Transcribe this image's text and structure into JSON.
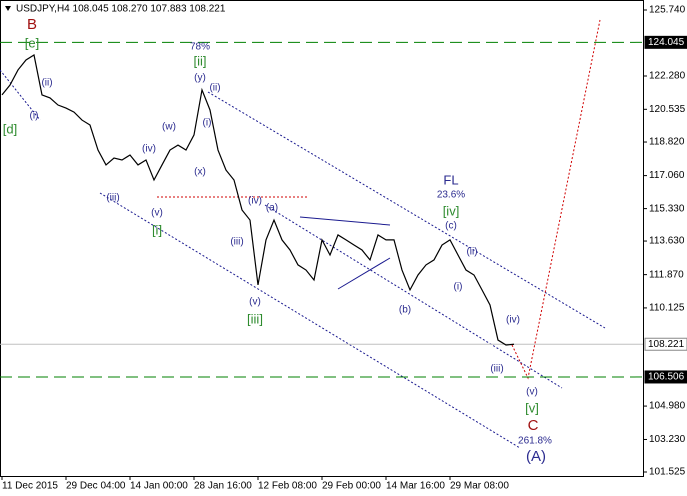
{
  "chart_data": {
    "type": "line",
    "title": "USDJPY,H4  108.045 108.270 107.883 108.221",
    "categories": [
      "11 Dec 2015",
      null,
      null,
      null,
      null,
      null,
      null,
      null,
      "29 Dec 04:00",
      null,
      null,
      null,
      null,
      null,
      null,
      null,
      "14 Jan 00:00",
      null,
      null,
      null,
      null,
      null,
      null,
      null,
      "28 Jan 16:00",
      null,
      null,
      null,
      null,
      null,
      null,
      null,
      "12 Feb 08:00",
      null,
      null,
      null,
      null,
      null,
      null,
      null,
      "29 Feb 00:00",
      null,
      null,
      null,
      null,
      null,
      null,
      null,
      "14 Mar 16:00",
      null,
      null,
      null,
      null,
      null,
      null,
      null,
      "29 Mar 08:00",
      null,
      null,
      null,
      null,
      null,
      null,
      null,
      null
    ],
    "series": [
      {
        "name": "USDJPY",
        "color": "#000000",
        "values": [
          121.29,
          121.81,
          122.6,
          123.12,
          123.38,
          121.29,
          121.13,
          120.76,
          120.6,
          120.39,
          119.97,
          119.71,
          118.4,
          117.62,
          117.98,
          117.88,
          118.14,
          117.62,
          117.88,
          116.83,
          117.62,
          118.4,
          118.66,
          118.4,
          119.19,
          121.55,
          120.5,
          118.4,
          117.35,
          116.83,
          115.26,
          114.73,
          111.33,
          113.69,
          114.73,
          113.69,
          113.16,
          112.38,
          112.11,
          111.59,
          113.69,
          112.9,
          113.95,
          113.69,
          113.42,
          113.16,
          112.64,
          113.95,
          113.69,
          113.69,
          112.11,
          111.07,
          111.85,
          112.38,
          112.64,
          113.42,
          113.69,
          112.9,
          112.11,
          111.85,
          111.07,
          110.28,
          108.44,
          108.18,
          108.221
        ]
      }
    ],
    "ylim": [
      101.525,
      125.74
    ],
    "yticks": [
      {
        "value": 125.74,
        "label": "125.740"
      },
      {
        "value": 122.28,
        "label": "122.280"
      },
      120.535,
      {
        "value": 118.82,
        "label": "118.820"
      },
      {
        "value": 117.06,
        "label": "117.060"
      },
      {
        "value": 115.33,
        "label": "115.330"
      },
      {
        "value": 113.63,
        "label": "113.630"
      },
      {
        "value": 111.87,
        "label": "111.870"
      },
      110.125,
      {
        "value": 104.98,
        "label": "104.980"
      },
      {
        "value": 103.23,
        "label": "103.230"
      },
      101.525
    ],
    "hlines": [
      {
        "value": 124.045,
        "color": "#008000",
        "style": "dashed"
      },
      {
        "value": 108.221,
        "color": "#c0c0c0",
        "style": "solid"
      },
      {
        "value": 106.506,
        "color": "#008000",
        "style": "dashed"
      }
    ],
    "annotations": [
      {
        "text": "B",
        "color": "#a01010"
      },
      {
        "text": "[e]",
        "color": "#2e8b2e"
      },
      {
        "text": "[d]",
        "color": "#2e8b2e"
      },
      {
        "text": "(i)",
        "color": "#2b2b8f"
      },
      {
        "text": "(ii)",
        "color": "#2b2b8f"
      },
      {
        "text": "78%",
        "color": "#2b2b8f"
      },
      {
        "text": "[ii]",
        "color": "#2e8b2e"
      },
      {
        "text": "(y)",
        "color": "#2b2b8f"
      },
      {
        "text": "(ii)",
        "color": "#2b2b8f"
      },
      {
        "text": "(i)",
        "color": "#2b2b8f"
      },
      {
        "text": "(w)",
        "color": "#2b2b8f"
      },
      {
        "text": "(iv)",
        "color": "#2b2b8f"
      },
      {
        "text": "(x)",
        "color": "#2b2b8f"
      },
      {
        "text": "(iii)",
        "color": "#2b2b8f"
      },
      {
        "text": "(v)",
        "color": "#2b2b8f"
      },
      {
        "text": "[i]",
        "color": "#2e8b2e"
      },
      {
        "text": "(iv)",
        "color": "#2b2b8f"
      },
      {
        "text": "(a)",
        "color": "#2b2b8f"
      },
      {
        "text": "(iii)",
        "color": "#2b2b8f"
      },
      {
        "text": "(v)",
        "color": "#2b2b8f"
      },
      {
        "text": "[iii]",
        "color": "#2e8b2e"
      },
      {
        "text": "FL",
        "color": "#2b2b8f"
      },
      {
        "text": "23.6%",
        "color": "#2b2b8f"
      },
      {
        "text": "[iv]",
        "color": "#2e8b2e"
      },
      {
        "text": "(c)",
        "color": "#2b2b8f"
      },
      {
        "text": "(ii)",
        "color": "#2b2b8f"
      },
      {
        "text": "(i)",
        "color": "#2b2b8f"
      },
      {
        "text": "(b)",
        "color": "#2b2b8f"
      },
      {
        "text": "(iv)",
        "color": "#2b2b8f"
      },
      {
        "text": "(iii)",
        "color": "#2b2b8f"
      },
      {
        "text": "(v)",
        "color": "#2b2b8f"
      },
      {
        "text": "[v]",
        "color": "#2e8b2e"
      },
      {
        "text": "C",
        "color": "#a01010"
      },
      {
        "text": "261.8%",
        "color": "#2b2b8f"
      },
      {
        "text": "(A)",
        "color": "#2b2b8f"
      }
    ]
  }
}
